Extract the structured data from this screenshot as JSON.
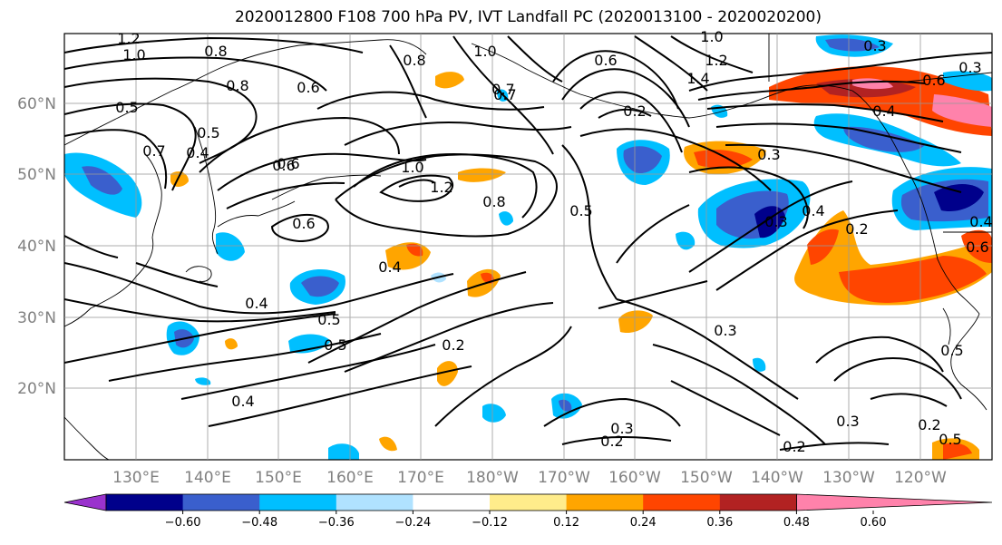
{
  "title": "2020012800 F108 700 hPa PV, IVT Landfall PC (2020013100 - 2020020200)",
  "lat_labels": [
    "60°N",
    "50°N",
    "40°N",
    "30°N",
    "20°N"
  ],
  "lon_labels": [
    "130°E",
    "140°E",
    "150°E",
    "160°E",
    "170°E",
    "180°W",
    "170°W",
    "160°W",
    "150°W",
    "140°W",
    "130°W",
    "120°W"
  ],
  "colorbar": {
    "ticks": [
      "−0.60",
      "−0.48",
      "−0.36",
      "−0.24",
      "−0.12",
      "0.12",
      "0.24",
      "0.36",
      "0.48",
      "0.60"
    ],
    "colors": [
      "#9a32cd",
      "#00008b",
      "#3a5fcd",
      "#00bfff",
      "#b0e2ff",
      "#ffffff",
      "#ffec8b",
      "#ffa500",
      "#ff4500",
      "#b22222",
      "#ff82ab"
    ]
  },
  "contour_labels": [
    "1.2",
    "1.0",
    "0.8",
    "0.5",
    "0.7",
    "0.6",
    "0.8",
    "1.0",
    "0.7",
    "0.8",
    "1.4",
    "1.2",
    "1.0",
    "0.6",
    "0.4",
    "0.5",
    "0.4",
    "0.6",
    "0.6",
    "1.0",
    "1.2",
    "0.8",
    "0.5",
    "0.3",
    "0.4",
    "0.3",
    "0.6",
    "0.2",
    "0.5",
    "0.4",
    "0.5",
    "0.3",
    "0.4",
    "0.2",
    "0.3",
    "0.2",
    "0.3",
    "0.2",
    "0.5",
    "0.4",
    "0.3",
    "0.2",
    "0.5",
    "0.3",
    "0.6",
    "0.4",
    "0.6",
    "0.7",
    "0.2"
  ]
}
